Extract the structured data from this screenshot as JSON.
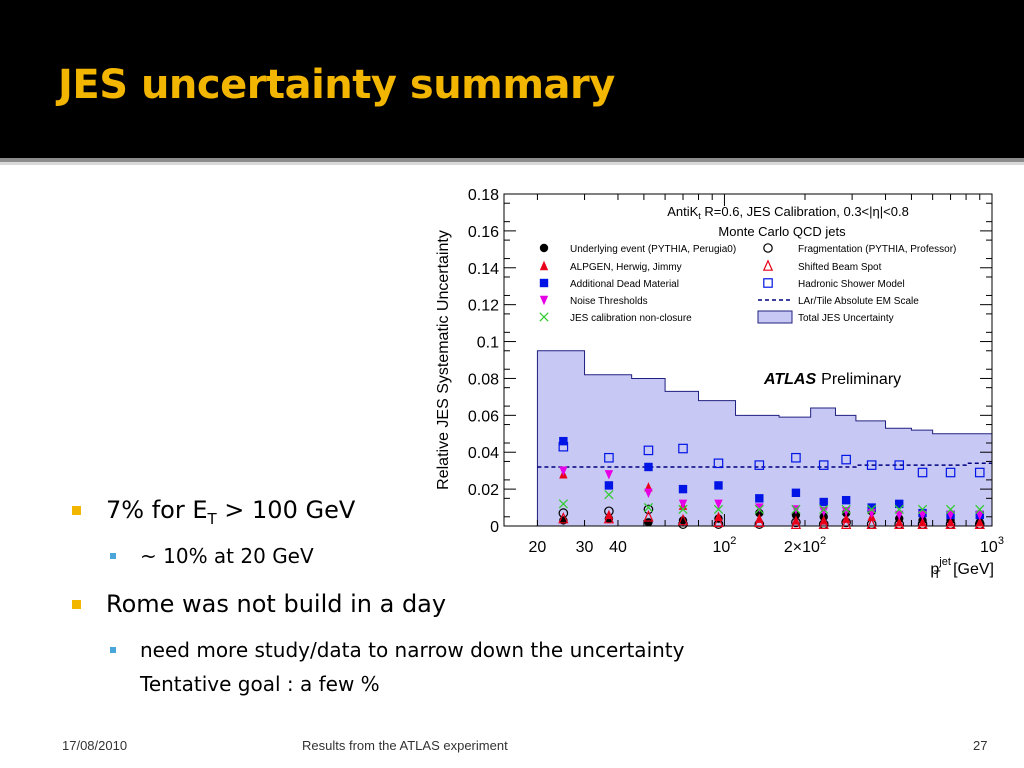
{
  "slide": {
    "title": "JES uncertainty summary",
    "colors": {
      "accent": "#f2b500",
      "sub_bullet": "#4aa6d9",
      "title_bg": "#000000"
    },
    "bullets": [
      {
        "pre": "7% for E",
        "sub": "T",
        "post": " > 100 GeV",
        "children": [
          {
            "text": "~ 10% at 20 GeV"
          }
        ]
      },
      {
        "text": "Rome was not build in a day",
        "children": [
          {
            "lines": [
              "need more study/data to narrow down the uncertainty",
              "Tentative goal : a few %"
            ]
          }
        ]
      }
    ],
    "footer": {
      "date": "17/08/2010",
      "center": "Results from the ATLAS experiment",
      "page": "27"
    }
  },
  "chart_data": {
    "type": "scatter",
    "title_line1": "AntiK",
    "title_line1_sub": "t",
    "title_line1_rest": " R=0.6, JES Calibration, 0.3<|η|<0.8",
    "title_line2": "Monte Carlo QCD jets",
    "ylabel": "Relative JES Systematic Uncertainty",
    "xlabel_main": "p",
    "xlabel_sup": "jet",
    "xlabel_sub": "T",
    "xlabel_unit": "[GeV]",
    "atlas_bold": "ATLAS",
    "atlas_rest": "Preliminary",
    "x_scale": "log",
    "xlim": [
      15,
      1000
    ],
    "ylim": [
      0,
      0.18
    ],
    "y_ticks": [
      {
        "v": 0,
        "label": "0"
      },
      {
        "v": 0.02,
        "label": "0.02"
      },
      {
        "v": 0.04,
        "label": "0.04"
      },
      {
        "v": 0.06,
        "label": "0.06"
      },
      {
        "v": 0.08,
        "label": "0.08"
      },
      {
        "v": 0.1,
        "label": "0.1"
      },
      {
        "v": 0.12,
        "label": "0.12"
      },
      {
        "v": 0.14,
        "label": "0.14"
      },
      {
        "v": 0.16,
        "label": "0.16"
      },
      {
        "v": 0.18,
        "label": "0.18"
      }
    ],
    "x_tick_labels": [
      {
        "v": 20,
        "label": "20"
      },
      {
        "v": 30,
        "label": "30"
      },
      {
        "v": 40,
        "label": "40"
      },
      {
        "v": 100,
        "label": "10",
        "sup": "2"
      },
      {
        "v": 200,
        "label": "2×10",
        "sup": "2"
      },
      {
        "v": 1000,
        "label": "10",
        "sup": "3"
      }
    ],
    "x_minor_ticks": [
      20,
      30,
      40,
      50,
      60,
      70,
      80,
      90,
      100,
      200,
      300,
      400,
      500,
      600,
      700,
      800,
      900
    ],
    "bin_edges": [
      20,
      30,
      45,
      60,
      80,
      110,
      160,
      210,
      260,
      310,
      400,
      500,
      600,
      800,
      1000
    ],
    "total_band": [
      0.095,
      0.082,
      0.08,
      0.073,
      0.068,
      0.06,
      0.059,
      0.064,
      0.06,
      0.057,
      0.053,
      0.052,
      0.05,
      0.05
    ],
    "em_scale": [
      0.032,
      0.032,
      0.032,
      0.032,
      0.032,
      0.032,
      0.032,
      0.032,
      0.032,
      0.033,
      0.033,
      0.033,
      0.033,
      0.034
    ],
    "series": [
      {
        "name": "Underlying event (PYTHIA, Perugia0)",
        "marker": "circle-filled",
        "color": "#000000",
        "x": [
          25,
          37,
          52,
          70,
          95,
          135,
          185,
          235,
          285,
          355,
          450,
          550,
          700,
          900
        ],
        "y": [
          0.003,
          0.004,
          0.002,
          0.003,
          0.004,
          0.007,
          0.006,
          0.005,
          0.007,
          0.008,
          0.004,
          0.003,
          0.003,
          0.002
        ]
      },
      {
        "name": "Fragmentation (PYTHIA, Professor)",
        "marker": "circle-open",
        "color": "#000000",
        "x": [
          25,
          37,
          52,
          70,
          95,
          135,
          185,
          235,
          285,
          355,
          450,
          550,
          700,
          900
        ],
        "y": [
          0.007,
          0.008,
          0.009,
          0.001,
          0.001,
          0.001,
          0.002,
          0.001,
          0.002,
          0.001,
          0.001,
          0.001,
          0.001,
          0.001
        ]
      },
      {
        "name": "ALPGEN, Herwig, Jimmy",
        "marker": "triangle-filled",
        "color": "#e8001a",
        "x": [
          25,
          37,
          52,
          70,
          95,
          135,
          185,
          235,
          285,
          355,
          450,
          550,
          700,
          900
        ],
        "y": [
          0.028,
          0.006,
          0.021,
          0.011,
          0.005,
          0.004,
          0.003,
          0.003,
          0.004,
          0.005,
          0.002,
          0.002,
          0.002,
          0.002
        ]
      },
      {
        "name": "Shifted Beam Spot",
        "marker": "triangle-open",
        "color": "#e8001a",
        "x": [
          25,
          37,
          52,
          70,
          95,
          135,
          185,
          235,
          285,
          355,
          450,
          550,
          700,
          900
        ],
        "y": [
          0.004,
          0.004,
          0.005,
          0.003,
          0.002,
          0.002,
          0.001,
          0.001,
          0.001,
          0.001,
          0.001,
          0.001,
          0.001,
          0.001
        ]
      },
      {
        "name": "Additional Dead Material",
        "marker": "square-filled",
        "color": "#0014e6",
        "x": [
          25,
          37,
          52,
          70,
          95,
          135,
          185,
          235,
          285,
          355,
          450,
          550,
          700,
          900
        ],
        "y": [
          0.046,
          0.022,
          0.032,
          0.02,
          0.022,
          0.015,
          0.018,
          0.013,
          0.014,
          0.01,
          0.012,
          0.007,
          0.006,
          0.006
        ]
      },
      {
        "name": "Hadronic Shower Model",
        "marker": "square-open",
        "color": "#0014e6",
        "x": [
          25,
          37,
          52,
          70,
          95,
          135,
          185,
          235,
          285,
          355,
          450,
          550,
          700,
          900
        ],
        "y": [
          0.043,
          0.037,
          0.041,
          0.042,
          0.034,
          0.033,
          0.037,
          0.033,
          0.036,
          0.033,
          0.033,
          0.029,
          0.029,
          0.029
        ]
      },
      {
        "name": "Noise Thresholds",
        "marker": "triangle-down-filled",
        "color": "#e600e6",
        "x": [
          25,
          37,
          52,
          70,
          95,
          135,
          185,
          235,
          285,
          355,
          450,
          550,
          700,
          900
        ],
        "y": [
          0.03,
          0.028,
          0.018,
          0.012,
          0.012,
          0.01,
          0.009,
          0.008,
          0.008,
          0.007,
          0.006,
          0.006,
          0.006,
          0.006
        ]
      },
      {
        "name": "JES calibration non-closure",
        "marker": "cross",
        "color": "#33cc33",
        "x": [
          25,
          37,
          52,
          70,
          95,
          135,
          185,
          235,
          285,
          355,
          450,
          550,
          700,
          900
        ],
        "y": [
          0.012,
          0.017,
          0.01,
          0.009,
          0.009,
          0.009,
          0.009,
          0.009,
          0.009,
          0.009,
          0.009,
          0.009,
          0.009,
          0.009
        ]
      }
    ],
    "legend_extra": [
      {
        "name": "LAr/Tile Absolute EM Scale",
        "marker": "dashed-line",
        "color": "#000080"
      },
      {
        "name": "Total JES Uncertainty",
        "marker": "band",
        "color": "#c8c8f5"
      }
    ],
    "legend_placement": "top",
    "grid": false
  }
}
